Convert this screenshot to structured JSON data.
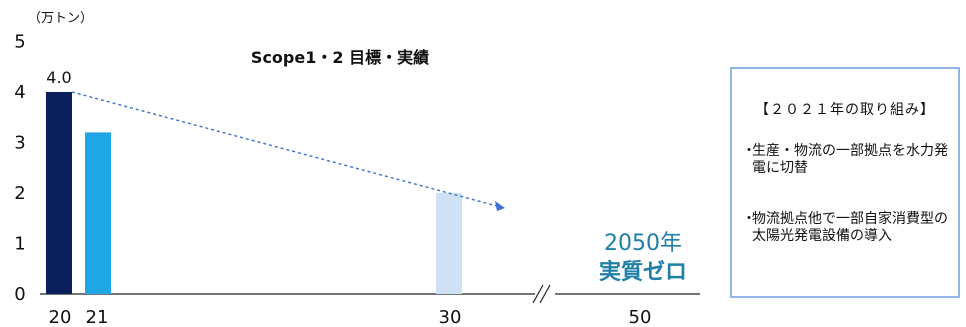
{
  "chart_data": {
    "type": "bar",
    "title": "Scope1・2 目標・実績",
    "unit_label": "（万トン）",
    "ylim": [
      0,
      5
    ],
    "yticks": [
      "0",
      "1",
      "2",
      "3",
      "4",
      "5"
    ],
    "categories": [
      "20",
      "21",
      "30",
      "50"
    ],
    "values": [
      4.0,
      3.2,
      2.0,
      0
    ],
    "value_labels": [
      "4.0",
      "",
      "",
      ""
    ],
    "bar_colors": [
      "#0a1f5c",
      "#1ea7e4",
      "#cfe2f5",
      "#ffffff"
    ],
    "trend_arrow": {
      "from": {
        "x": "20",
        "y": 4.0
      },
      "to_category_beyond": "30",
      "style": "dashed",
      "color": "#3b6fd1"
    },
    "axis_break_between": [
      "30",
      "50"
    ],
    "goal_annotation": {
      "line1": "2050年",
      "line2": "実質ゼロ",
      "color": "#1f7fa6"
    },
    "grid": false
  },
  "info_box": {
    "heading": "【２０２１年の取り組み】",
    "items": [
      {
        "bullet": "・",
        "text": "生産・物流の一部拠点を水力発電に切替"
      },
      {
        "bullet": "・",
        "text": "物流拠点他で一部自家消費型の太陽光発電設備の導入"
      }
    ]
  }
}
